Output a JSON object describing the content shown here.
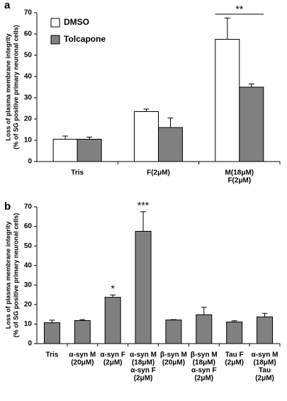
{
  "chart_data": [
    {
      "type": "bar",
      "panel": "a",
      "ylabel": [
        "Loss of plasma membrane integrity",
        "(% of SG positive primary neuronal cells)"
      ],
      "categories": [
        [
          "Tris"
        ],
        [
          "F(2μM)"
        ],
        [
          "M(18μM)",
          "F(2μM)"
        ]
      ],
      "series": [
        {
          "name": "DMSO",
          "color": "#ffffff",
          "values": [
            10.5,
            23.5,
            57.5
          ],
          "errors": [
            1.5,
            1.2,
            10
          ]
        },
        {
          "name": "Tolcapone",
          "color": "#808080",
          "values": [
            10.5,
            16,
            35
          ],
          "errors": [
            1,
            4.5,
            1.5
          ]
        }
      ],
      "annotations": [
        null,
        null,
        "**"
      ],
      "ylim": [
        0,
        70
      ],
      "yticks": [
        0,
        10,
        20,
        30,
        40,
        50,
        60,
        70
      ],
      "legend": "upper left"
    },
    {
      "type": "bar",
      "panel": "b",
      "ylabel": [
        "Loss of plasma membrane integrity",
        "(% of SG positive primary neuronal cells)"
      ],
      "categories": [
        [
          "Tris"
        ],
        [
          "α-syn M",
          "(20μM)"
        ],
        [
          "α-syn F",
          "(2μM)"
        ],
        [
          "α-syn M",
          "(18μM)",
          "α-syn F",
          "(2μM)"
        ],
        [
          "β-syn M",
          "(20μM)"
        ],
        [
          "β-syn M",
          "(18μM)",
          "α-syn F",
          "(2μM)"
        ],
        [
          "Tau F",
          "(2μM)"
        ],
        [
          "α-syn M",
          "(18μM)",
          "Tau",
          "(2μM)"
        ]
      ],
      "series": [
        {
          "color": "#808080",
          "values": [
            10.7,
            11.8,
            23.7,
            57.5,
            12.1,
            14.8,
            11.1,
            13.7
          ],
          "errors": [
            1.3,
            0.5,
            1.2,
            10,
            0.2,
            3.8,
            0.6,
            1.8
          ]
        }
      ],
      "annotations": [
        null,
        null,
        "*",
        "***",
        null,
        null,
        null,
        null
      ],
      "ylim": [
        0,
        70
      ],
      "yticks": [
        0,
        10,
        20,
        30,
        40,
        50,
        60,
        70
      ]
    }
  ]
}
